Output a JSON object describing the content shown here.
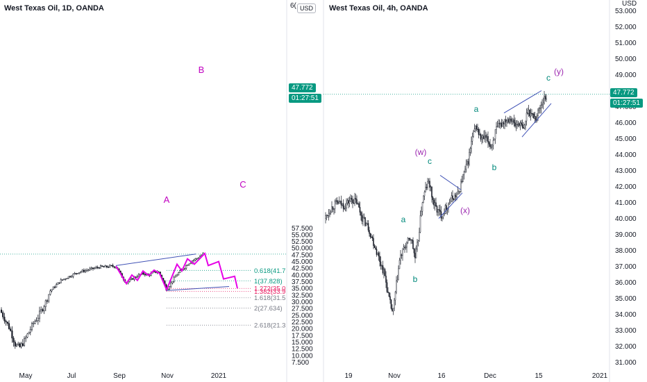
{
  "left": {
    "title": "West Texas Oil, 1D, OANDA",
    "currency": "USD",
    "price_badge": "47.772",
    "time_badge": "01:27:51",
    "axis_top_partial": "6(",
    "fib_levels": [
      {
        "label": "0.618(41.7",
        "price": 41.7,
        "color": "#089981"
      },
      {
        "label": "1(37.828)",
        "price": 37.828,
        "color": "#089981"
      },
      {
        "label": "1.272(35.0",
        "price": 35.0,
        "color": "#e91e63"
      },
      {
        "label": "1.382(33.9",
        "price": 33.9,
        "color": "#e91e63"
      },
      {
        "label": "1.618(31.5",
        "price": 31.5,
        "color": "#787b86"
      },
      {
        "label": "2(27.634)",
        "price": 27.634,
        "color": "#787b86"
      },
      {
        "label": "2.618(21.3",
        "price": 21.3,
        "color": "#787b86"
      }
    ],
    "wave_labels": [
      {
        "text": "B",
        "color": "#c000c0"
      },
      {
        "text": "A",
        "color": "#c000c0"
      },
      {
        "text": "C",
        "color": "#c000c0"
      }
    ]
  },
  "right": {
    "title": "West Texas Oil, 4h, OANDA",
    "currency": "USD",
    "price_badge": "47.772",
    "time_badge": "01:27:51",
    "wave_labels": [
      {
        "text": "(w)",
        "color": "#9c27b0"
      },
      {
        "text": "c",
        "color": "#00897b"
      },
      {
        "text": "a",
        "color": "#00897b"
      },
      {
        "text": "b",
        "color": "#00897b"
      },
      {
        "text": "(x)",
        "color": "#9c27b0"
      },
      {
        "text": "a",
        "color": "#00897b"
      },
      {
        "text": "b",
        "color": "#00897b"
      },
      {
        "text": "c",
        "color": "#00897b"
      },
      {
        "text": "(y)",
        "color": "#9c27b0"
      }
    ]
  },
  "chart_data": [
    {
      "type": "candlestick",
      "title": "West Texas Oil, 1D, OANDA",
      "ylim": [
        7.5,
        58
      ],
      "y_ticks": [
        "7.500",
        "10.000",
        "12.500",
        "15.000",
        "17.500",
        "20.000",
        "22.500",
        "25.000",
        "27.500",
        "30.000",
        "32.500",
        "35.000",
        "37.500",
        "40.000",
        "42.500",
        "45.000",
        "47.500",
        "50.000",
        "52.500",
        "55.000",
        "57.500"
      ],
      "x_ticks": [
        "May",
        "Jul",
        "Sep",
        "Nov",
        "2021"
      ],
      "last_price": 47.772,
      "approx_close_path": [
        {
          "date": "Apr",
          "price": 27
        },
        {
          "date": "Apr",
          "price": 14
        },
        {
          "date": "May",
          "price": 20
        },
        {
          "date": "Jun",
          "price": 37
        },
        {
          "date": "Jul",
          "price": 40
        },
        {
          "date": "Aug",
          "price": 42
        },
        {
          "date": "Sep",
          "price": 43
        },
        {
          "date": "Sep",
          "price": 37
        },
        {
          "date": "Oct",
          "price": 41
        },
        {
          "date": "Nov",
          "price": 34
        },
        {
          "date": "Nov",
          "price": 42
        },
        {
          "date": "Dec",
          "price": 47.772
        }
      ]
    },
    {
      "type": "candlestick",
      "title": "West Texas Oil, 4h, OANDA",
      "ylim": [
        31,
        53.5
      ],
      "y_ticks": [
        "31.000",
        "32.000",
        "33.000",
        "34.000",
        "35.000",
        "36.000",
        "37.000",
        "38.000",
        "39.000",
        "40.000",
        "41.000",
        "42.000",
        "43.000",
        "44.000",
        "45.000",
        "46.000",
        "47.000",
        "48.000",
        "49.000",
        "50.000",
        "51.000",
        "52.000",
        "53.000"
      ],
      "x_ticks": [
        "19",
        "Nov",
        "16",
        "Dec",
        "15",
        "2021"
      ],
      "last_price": 47.772,
      "approx_close_path": [
        {
          "date": "Oct 15",
          "price": 40.5
        },
        {
          "date": "Oct 21",
          "price": 41
        },
        {
          "date": "Oct 26",
          "price": 39
        },
        {
          "date": "Nov 1",
          "price": 34
        },
        {
          "date": "Nov 4",
          "price": 38.5
        },
        {
          "date": "Nov 7",
          "price": 37.5
        },
        {
          "date": "Nov 10",
          "price": 42.8
        },
        {
          "date": "Nov 17",
          "price": 40.2
        },
        {
          "date": "Nov 20",
          "price": 42
        },
        {
          "date": "Nov 24",
          "price": 46.2
        },
        {
          "date": "Dec 1",
          "price": 44.5
        },
        {
          "date": "Dec 7",
          "price": 46.5
        },
        {
          "date": "Dec 10",
          "price": 45.5
        },
        {
          "date": "Dec 14",
          "price": 47.5
        },
        {
          "date": "Dec 17",
          "price": 47.772
        }
      ]
    }
  ]
}
